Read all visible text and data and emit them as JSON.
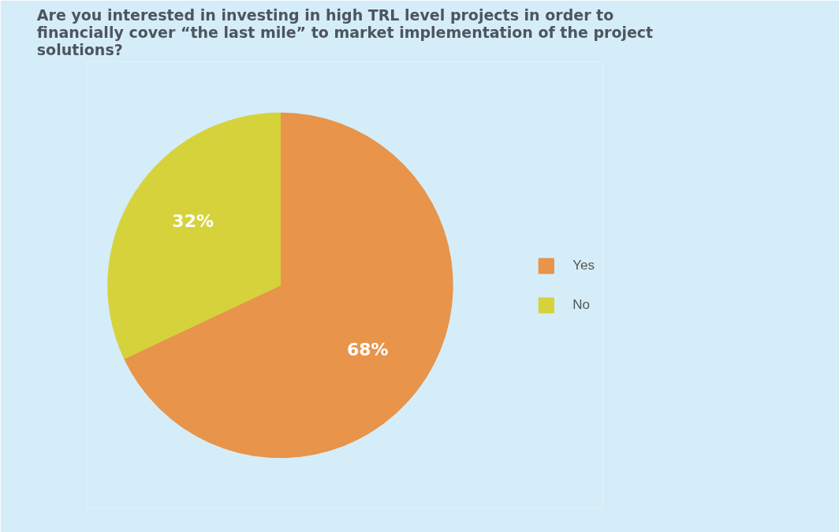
{
  "chart_data": {
    "type": "pie",
    "title": "Are you interested in investing in high TRL level projects in order to financially cover “the last mile” to market implementation of the project solutions?",
    "categories": [
      "Yes",
      "No"
    ],
    "values": [
      68,
      32
    ],
    "colors": [
      "#e8944a",
      "#d6d23c"
    ],
    "value_labels": [
      "68%",
      "32%"
    ],
    "legend": "right"
  }
}
